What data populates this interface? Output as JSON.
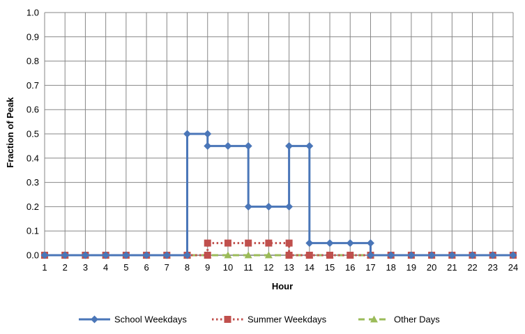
{
  "chart_data": {
    "type": "line",
    "xlabel": "Hour",
    "ylabel": "Fraction of Peak",
    "ylim": [
      0,
      1
    ],
    "yticks": [
      "0.0",
      "0.1",
      "0.2",
      "0.3",
      "0.4",
      "0.5",
      "0.6",
      "0.7",
      "0.8",
      "0.9",
      "1.0"
    ],
    "xticks": [
      "1",
      "2",
      "3",
      "4",
      "5",
      "6",
      "7",
      "8",
      "9",
      "10",
      "11",
      "12",
      "13",
      "14",
      "15",
      "16",
      "17",
      "18",
      "19",
      "20",
      "21",
      "22",
      "23",
      "24"
    ],
    "grid": true,
    "legend": "bottom",
    "series": [
      {
        "name": "School Weekdays",
        "color": "#4a76b8",
        "marker": "diamond",
        "line": "solid",
        "points": [
          [
            1,
            0
          ],
          [
            2,
            0
          ],
          [
            3,
            0
          ],
          [
            4,
            0
          ],
          [
            5,
            0
          ],
          [
            6,
            0
          ],
          [
            7,
            0
          ],
          [
            8,
            0
          ],
          [
            8,
            0.5
          ],
          [
            9,
            0.5
          ],
          [
            9,
            0.45
          ],
          [
            10,
            0.45
          ],
          [
            11,
            0.45
          ],
          [
            11,
            0.2
          ],
          [
            12,
            0.2
          ],
          [
            13,
            0.2
          ],
          [
            13,
            0.45
          ],
          [
            14,
            0.45
          ],
          [
            14,
            0.05
          ],
          [
            15,
            0.05
          ],
          [
            16,
            0.05
          ],
          [
            17,
            0.05
          ],
          [
            17,
            0
          ],
          [
            18,
            0
          ],
          [
            19,
            0
          ],
          [
            20,
            0
          ],
          [
            21,
            0
          ],
          [
            22,
            0
          ],
          [
            23,
            0
          ],
          [
            24,
            0
          ]
        ]
      },
      {
        "name": "Summer Weekdays",
        "color": "#c0504d",
        "marker": "square",
        "line": "dotted",
        "points": [
          [
            1,
            0
          ],
          [
            2,
            0
          ],
          [
            3,
            0
          ],
          [
            4,
            0
          ],
          [
            5,
            0
          ],
          [
            6,
            0
          ],
          [
            7,
            0
          ],
          [
            8,
            0
          ],
          [
            9,
            0
          ],
          [
            9,
            0.05
          ],
          [
            10,
            0.05
          ],
          [
            11,
            0.05
          ],
          [
            12,
            0.05
          ],
          [
            13,
            0.05
          ],
          [
            13,
            0
          ],
          [
            14,
            0
          ],
          [
            15,
            0
          ],
          [
            16,
            0
          ],
          [
            17,
            0
          ],
          [
            18,
            0
          ],
          [
            19,
            0
          ],
          [
            20,
            0
          ],
          [
            21,
            0
          ],
          [
            22,
            0
          ],
          [
            23,
            0
          ],
          [
            24,
            0
          ]
        ]
      },
      {
        "name": "Other Days",
        "color": "#9bbb59",
        "marker": "triangle",
        "line": "dashed",
        "points": [
          [
            1,
            0
          ],
          [
            2,
            0
          ],
          [
            3,
            0
          ],
          [
            4,
            0
          ],
          [
            5,
            0
          ],
          [
            6,
            0
          ],
          [
            7,
            0
          ],
          [
            8,
            0
          ],
          [
            9,
            0
          ],
          [
            10,
            0
          ],
          [
            11,
            0
          ],
          [
            12,
            0
          ],
          [
            13,
            0
          ],
          [
            14,
            0
          ],
          [
            15,
            0
          ],
          [
            16,
            0
          ],
          [
            17,
            0
          ],
          [
            18,
            0
          ],
          [
            19,
            0
          ],
          [
            20,
            0
          ],
          [
            21,
            0
          ],
          [
            22,
            0
          ],
          [
            23,
            0
          ],
          [
            24,
            0
          ]
        ]
      }
    ]
  }
}
